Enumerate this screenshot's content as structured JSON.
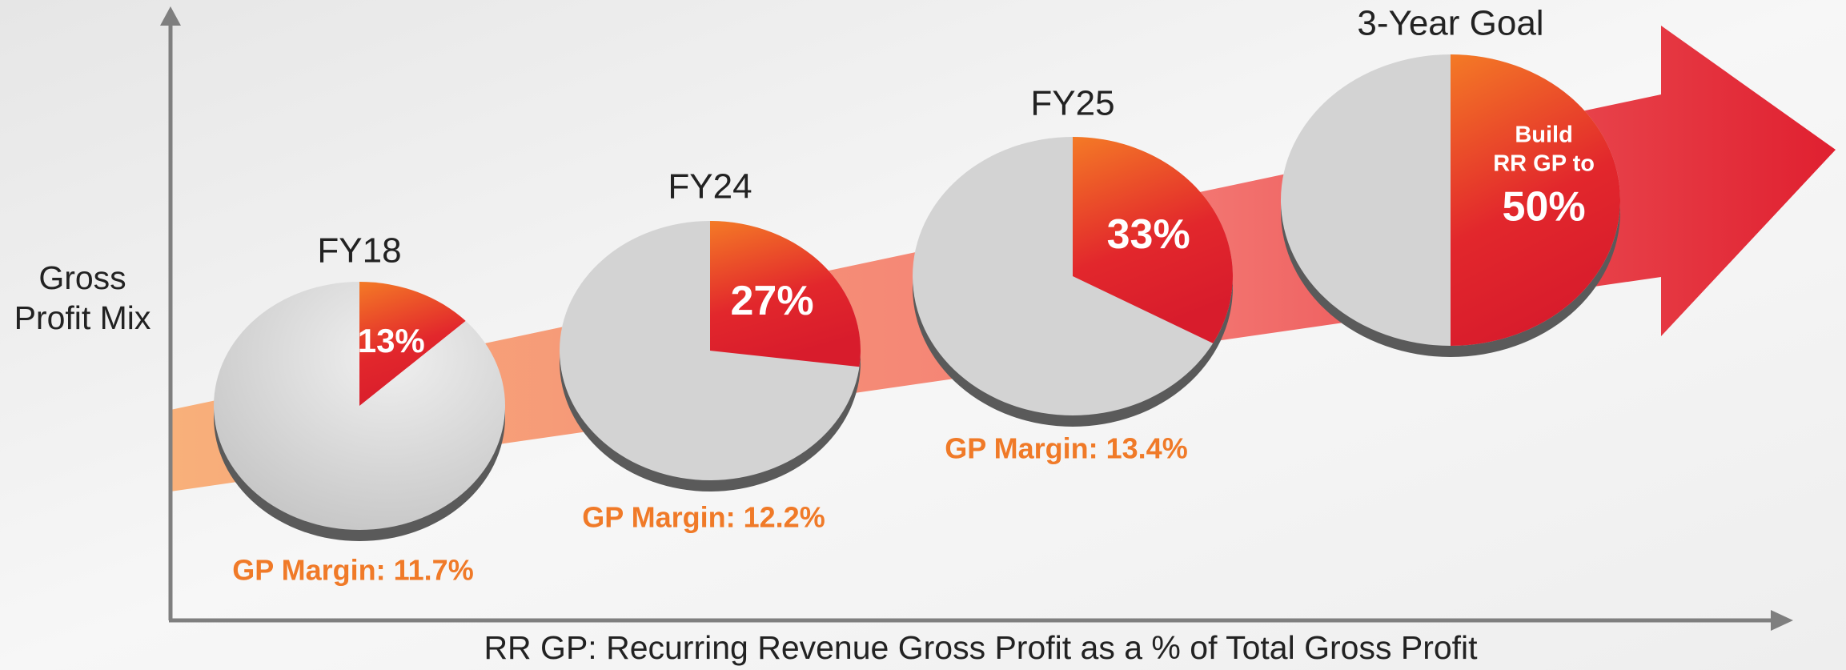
{
  "chart_data": {
    "type": "pie",
    "y_label_lines": [
      "Gross",
      "Profit Mix"
    ],
    "x_label": "RR GP: Recurring Revenue Gross Profit as a % of Total Gross Profit",
    "categories": [
      "FY18",
      "FY24",
      "FY25",
      "3-Year Goal"
    ],
    "values": [
      13,
      27,
      33,
      50
    ],
    "value_labels": [
      "13%",
      "27%",
      "33%",
      "50%"
    ],
    "margin_labels": [
      "GP Margin: 11.7%",
      "GP Margin: 12.2%",
      "GP Margin: 13.4%"
    ],
    "goal_note_lines": [
      "Build",
      "RR GP to"
    ],
    "ylim": [
      0,
      100
    ],
    "colors": {
      "share": "#e0322a",
      "rest": "#d3d3d3",
      "margin": "#f07a28"
    }
  }
}
